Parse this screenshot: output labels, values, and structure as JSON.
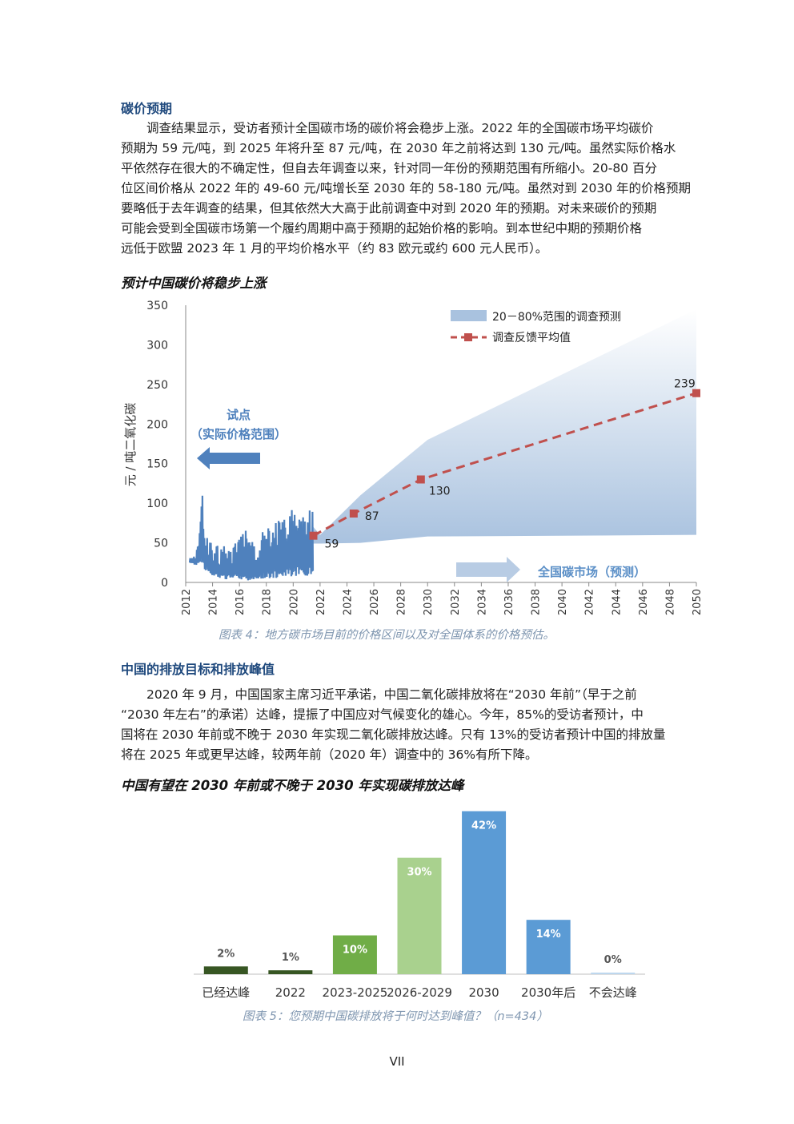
{
  "section1": {
    "heading": "碳价预期",
    "paragraph": [
      "调查结果显示，受访者预计全国碳市场的碳价将会稳步上涨。2022 年的全国碳市场平均碳价",
      "预期为 59 元/吨，到 2025 年将升至 87 元/吨，在 2030 年之前将达到 130 元/吨。虽然实际价格水",
      "平依然存在很大的不确定性，但自去年调查以来，针对同一年份的预期范围有所缩小。20-80 百分",
      "位区间价格从 2022 年的 49-60 元/吨增长至 2030 年的 58-180 元/吨。虽然对到 2030 年的价格预期",
      "要略低于去年调查的结果，但其依然大大高于此前调查中对到 2020 年的预期。对未来碳价的预期",
      "可能会受到全国碳市场第一个履约周期中高于预期的起始价格的影响。到本世纪中期的预期价格",
      "远低于欧盟 2023 年 1 月的平均价格水平（约 83 欧元或约 600 元人民币）。"
    ]
  },
  "chart1_title": "预计中国碳价将稳步上涨",
  "chart1_caption": "图表 4：地方碳市场目前的价格区间以及对全国体系的价格预估。",
  "section2": {
    "heading": "中国的排放目标和排放峰值",
    "paragraph": [
      "2020 年 9 月，中国国家主席习近平承诺，中国二氧化碳排放将在“2030 年前”（早于之前",
      "“2030 年左右”的承诺）达峰，提振了中国应对气候变化的雄心。今年，85%的受访者预计，中",
      "国将在 2030 年前或不晚于 2030 年实现二氧化碳排放达峰。只有 13%的受访者预计中国的排放量",
      "将在 2025 年或更早达峰，较两年前（2020 年）调查中的 36%有所下降。"
    ]
  },
  "chart2_title": "中国有望在 2030 年前或不晚于 2030 年实现碳排放达峰",
  "chart2_caption": "图表 5：您预期中国碳排放将于何时达到峰值？（n=434）",
  "page_number": "VII",
  "chart_data": [
    {
      "type": "area",
      "ylabel": "元 / 吨二氧化碳",
      "ylim": [
        0,
        350
      ],
      "xlim": [
        2012,
        2050
      ],
      "yticks": [
        "0",
        "50",
        "100",
        "150",
        "200",
        "250",
        "300",
        "350"
      ],
      "xticks": [
        "2012",
        "2014",
        "2016",
        "2018",
        "2020",
        "2022",
        "2024",
        "2026",
        "2028",
        "2030",
        "2032",
        "2034",
        "2036",
        "2038",
        "2040",
        "2042",
        "2044",
        "2046",
        "2048",
        "2050"
      ],
      "legend_position": "top-right",
      "legend": [
        "20－80%范围的调查预测",
        "调查反馈平均值"
      ],
      "colors": {
        "band": "#a9c2df",
        "mean": "#c0504d",
        "pilot": "#4f81bd",
        "arrow_pilot": "#4f81bd",
        "arrow_national": "#b8cce4",
        "national_text": "#5b8fc7"
      },
      "pilot_label": [
        "试点",
        "（实际价格范围）"
      ],
      "national_label": "全国碳市场（预测）",
      "band": {
        "x": [
          2021.5,
          2022,
          2025,
          2030,
          2050
        ],
        "low": [
          49,
          49,
          50,
          58,
          60
        ],
        "high": [
          70,
          60,
          110,
          180,
          345
        ]
      },
      "mean_series": {
        "name": "调查反馈平均值",
        "x": [
          2021.5,
          2024.5,
          2029.5,
          2050
        ],
        "y": [
          59,
          87,
          130,
          239
        ],
        "labels": [
          "59",
          "87",
          "130",
          "239"
        ]
      },
      "pilot_range": {
        "x_start": 2012.3,
        "x_end": 2021.5,
        "profile_high": [
          [
            2012.3,
            30
          ],
          [
            2012.7,
            40
          ],
          [
            2013.0,
            70
          ],
          [
            2013.2,
            124
          ],
          [
            2013.4,
            60
          ],
          [
            2014.0,
            55
          ],
          [
            2015.0,
            45
          ],
          [
            2016.0,
            58
          ],
          [
            2016.5,
            66
          ],
          [
            2017.0,
            50
          ],
          [
            2017.5,
            58
          ],
          [
            2018.0,
            80
          ],
          [
            2019.0,
            85
          ],
          [
            2019.5,
            90
          ],
          [
            2020.0,
            100
          ],
          [
            2020.5,
            105
          ],
          [
            2021.0,
            95
          ],
          [
            2021.5,
            90
          ]
        ],
        "profile_low": [
          [
            2012.3,
            25
          ],
          [
            2013.0,
            20
          ],
          [
            2014.0,
            8
          ],
          [
            2015.0,
            3
          ],
          [
            2016.0,
            2
          ],
          [
            2017.0,
            3
          ],
          [
            2018.0,
            5
          ],
          [
            2019.0,
            6
          ],
          [
            2020.0,
            8
          ],
          [
            2021.0,
            5
          ],
          [
            2021.5,
            10
          ]
        ]
      }
    },
    {
      "type": "bar",
      "categories": [
        "已经达峰",
        "2022",
        "2023-2025",
        "2026-2029",
        "2030",
        "2030年后",
        "不会达峰"
      ],
      "values": [
        2,
        1,
        10,
        30,
        42,
        14,
        0
      ],
      "labels": [
        "2%",
        "1%",
        "10%",
        "30%",
        "42%",
        "14%",
        "0%"
      ],
      "colors": [
        "#375623",
        "#375623",
        "#70ad47",
        "#a9d18e",
        "#5b9bd5",
        "#5b9bd5",
        "#bdd7ee"
      ],
      "ylim": [
        0,
        45
      ]
    }
  ]
}
